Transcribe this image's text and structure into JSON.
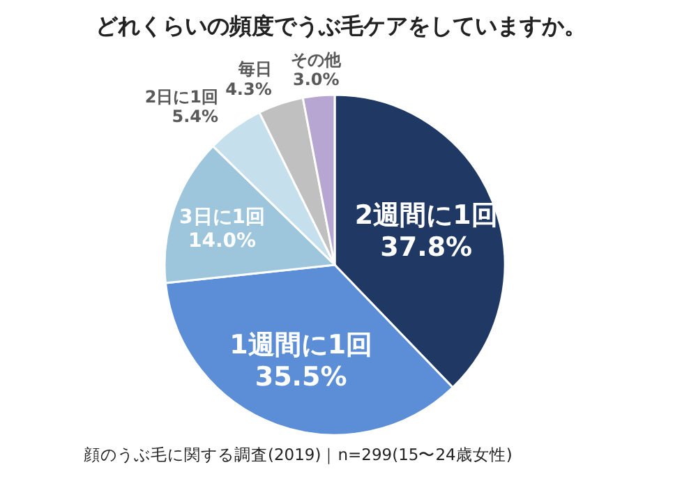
{
  "chart_data": {
    "type": "pie",
    "title": "どれくらいの頻度でうぶ毛ケアをしていますか。",
    "categories": [
      "2週間に1回",
      "1週間に1回",
      "3日に1回",
      "2日に1回",
      "毎日",
      "その他"
    ],
    "values": [
      37.8,
      35.5,
      14.0,
      5.4,
      4.3,
      3.0
    ],
    "colors": [
      "#1f3864",
      "#5b8ed6",
      "#9dc6dc",
      "#c5e0ec",
      "#c0c0c0",
      "#b7a6d2"
    ],
    "value_labels": [
      "37.8%",
      "35.5%",
      "14.0%",
      "5.4%",
      "4.3%",
      "3.0%"
    ],
    "annotations": [
      "顔のうぶ毛に関する調査(2019)｜n=299(15〜24歳女性)"
    ]
  }
}
